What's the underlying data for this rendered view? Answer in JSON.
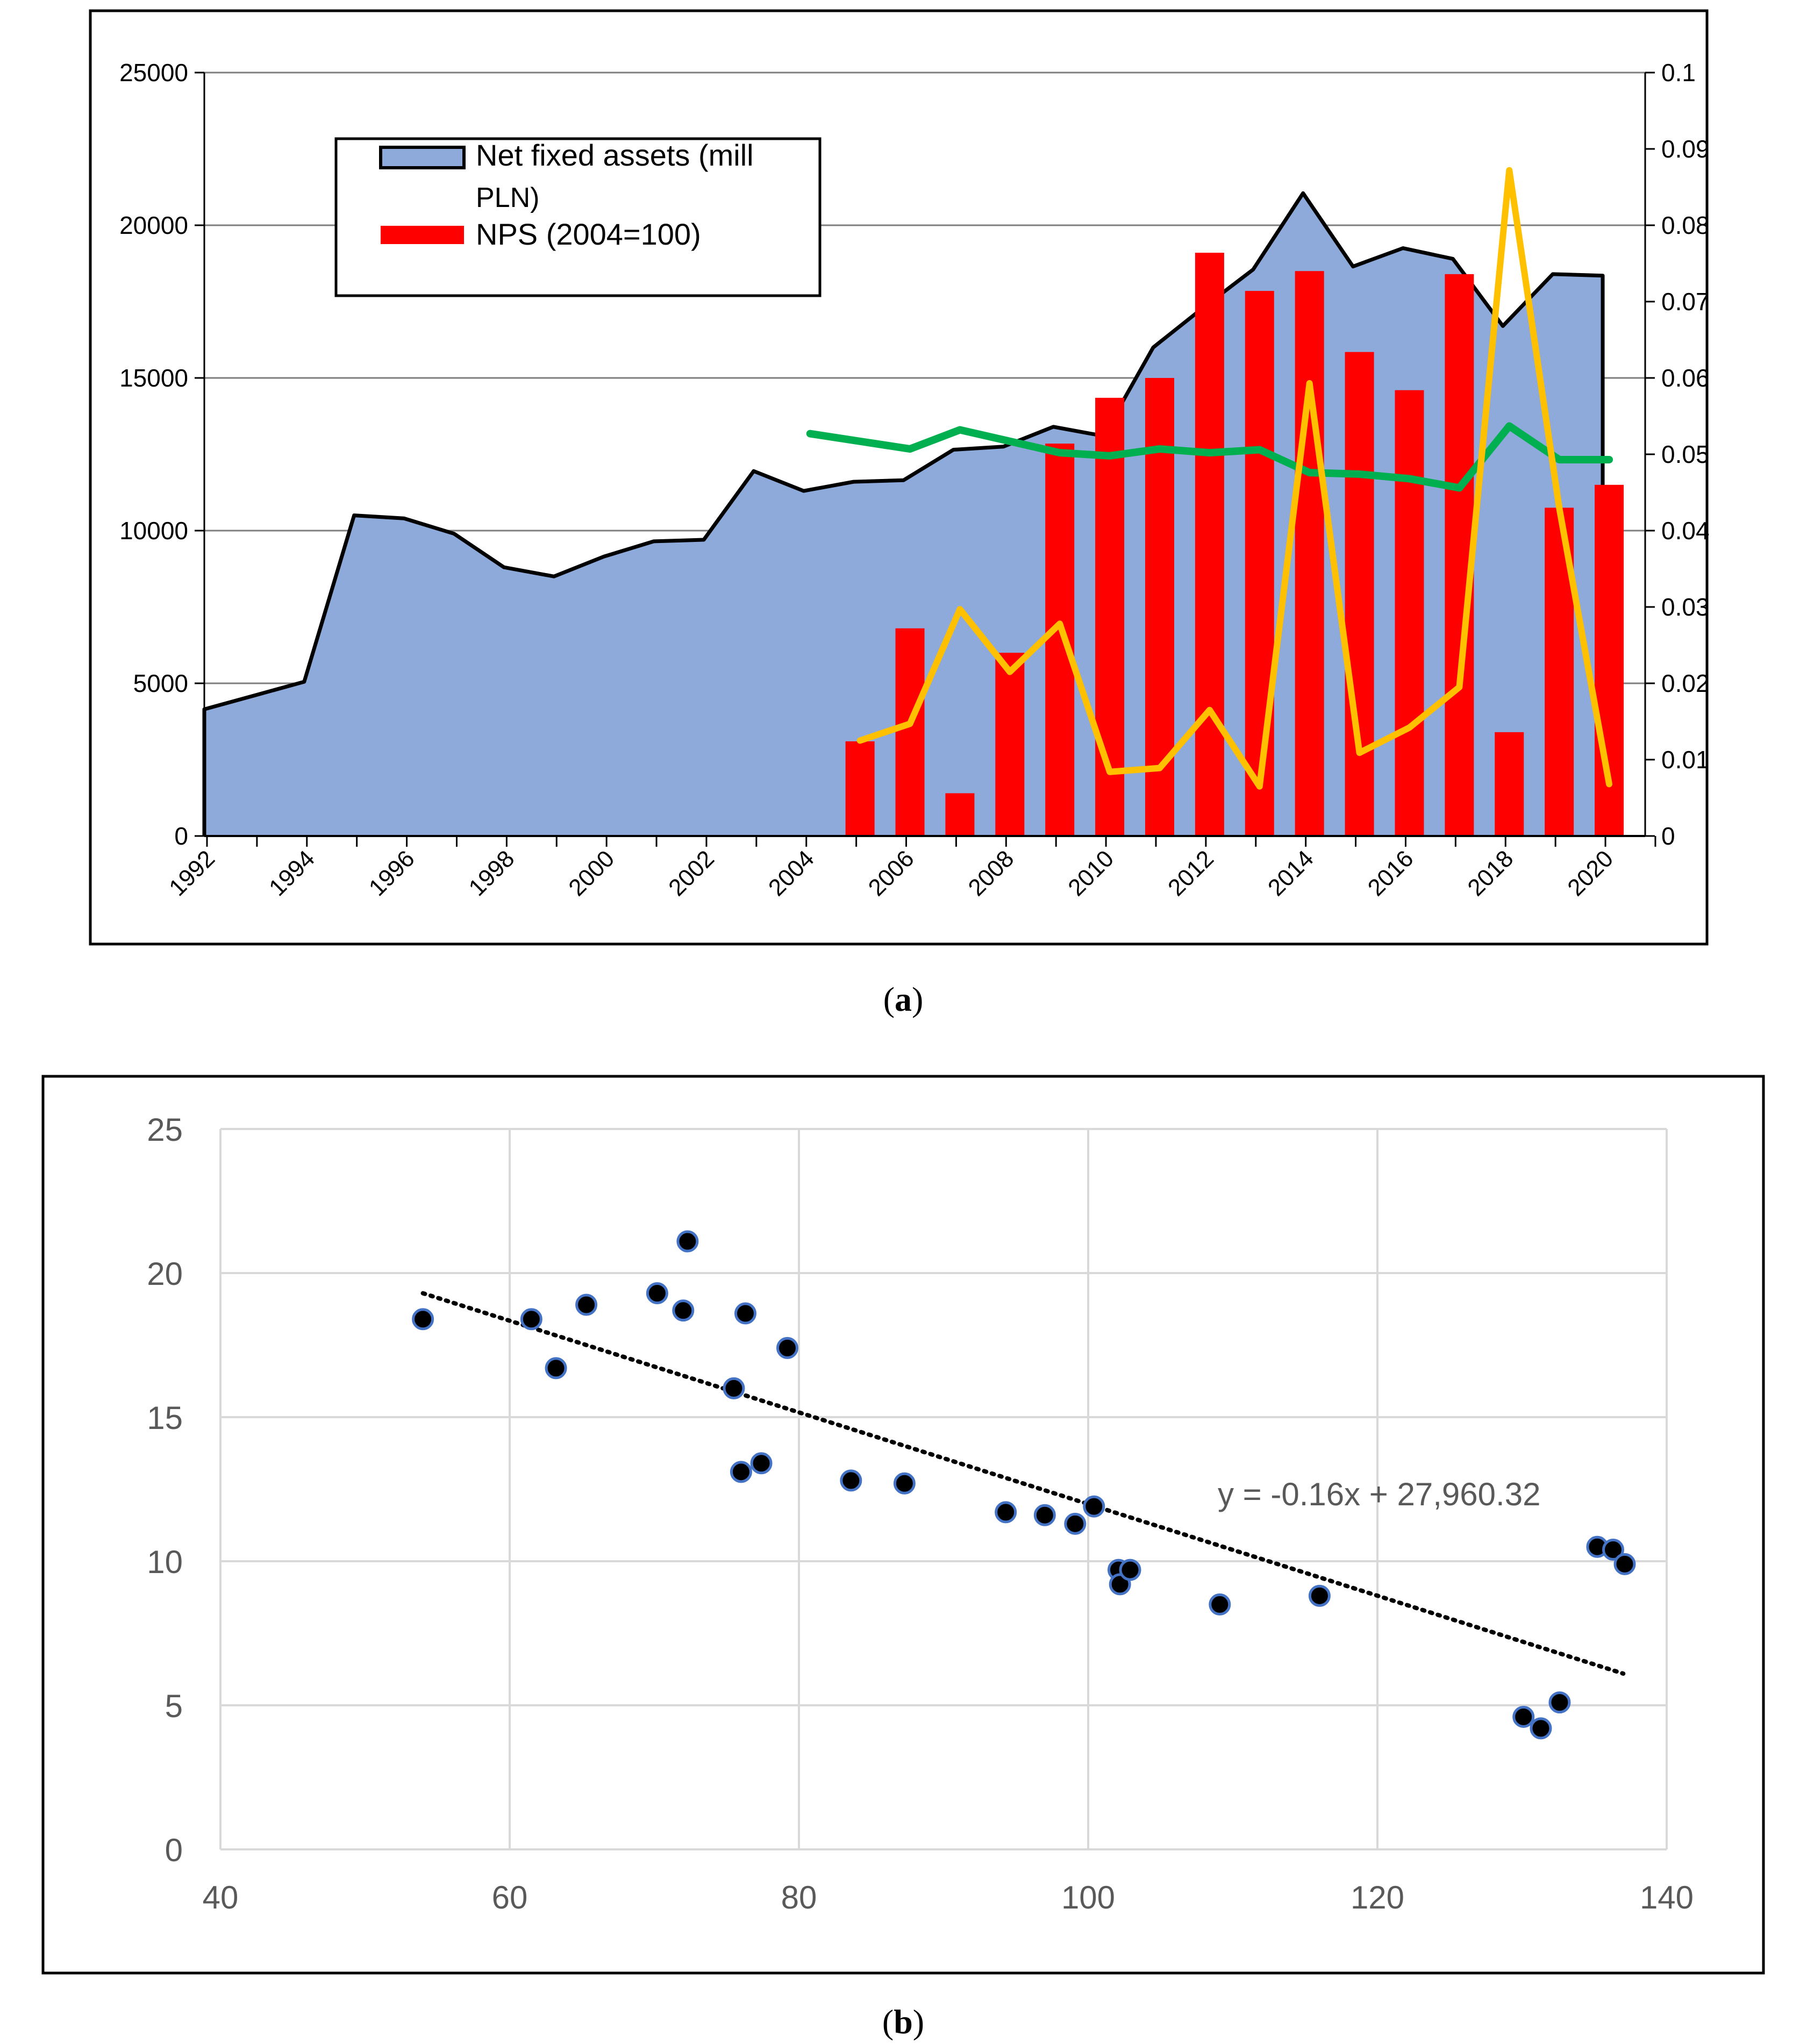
{
  "chart_data": [
    {
      "panel": "a",
      "type": "area-bar-line",
      "caption_letter": "a",
      "x_ticks": [
        "1992",
        "1994",
        "1996",
        "1998",
        "2000",
        "2002",
        "2004",
        "2006",
        "2008",
        "2010",
        "2012",
        "2014",
        "2016",
        "2018",
        "2020"
      ],
      "y_left": {
        "ylim": [
          0,
          25000
        ],
        "ticks": [
          "0",
          "5000",
          "10000",
          "15000",
          "20000",
          "25000"
        ]
      },
      "y_right": {
        "ylim": [
          0,
          0.1
        ],
        "ticks": [
          "0",
          "0.01",
          "0.02",
          "0.03",
          "0.04",
          "0.05",
          "0.06",
          "0.07",
          "0.08",
          "0.09",
          "0.1"
        ]
      },
      "legend": {
        "position": "upper-left",
        "area_label_line1": "Net fixed assets (mill",
        "area_label_line2": "PLN)",
        "bar_label": "NPS (2004=100)"
      },
      "colors": {
        "area": "#8eaadb",
        "bars": "#ff0000",
        "green": "#00b050",
        "yellow": "#ffc000"
      },
      "net_fixed_assets": {
        "x": [
          1992,
          1993,
          1994,
          1995,
          1996,
          1997,
          1998,
          1999,
          2000,
          2001,
          2002,
          2003,
          2004,
          2005,
          2006,
          2007,
          2008,
          2009,
          2010,
          2011,
          2012,
          2013,
          2014,
          2015,
          2016,
          2017,
          2018,
          2019,
          2020
        ],
        "values": [
          4150,
          4600,
          5050,
          10500,
          10400,
          9900,
          8800,
          8500,
          9150,
          9650,
          9700,
          11950,
          11300,
          11600,
          11650,
          12650,
          12750,
          13400,
          13100,
          16000,
          17300,
          18550,
          21050,
          18650,
          19250,
          18900,
          16700,
          18400,
          18350
        ]
      },
      "nps_bars": {
        "x": [
          2005,
          2006,
          2007,
          2008,
          2009,
          2010,
          2011,
          2012,
          2013,
          2014,
          2015,
          2016,
          2017,
          2018,
          2019,
          2020
        ],
        "values": [
          3100,
          6800,
          1400,
          6000,
          12850,
          14350,
          15000,
          19100,
          17850,
          18500,
          15850,
          14600,
          18400,
          3400,
          10750,
          11500
        ]
      },
      "green_series": {
        "x": [
          2004,
          2005,
          2006,
          2007,
          2008,
          2009,
          2010,
          2011,
          2012,
          2013,
          2014,
          2015,
          2016,
          2017,
          2018,
          2019,
          2020
        ],
        "values": [
          0.0527,
          0.0517,
          0.0507,
          0.0532,
          0.0517,
          0.0502,
          0.0498,
          0.0507,
          0.0502,
          0.0506,
          0.0476,
          0.0474,
          0.0468,
          0.0456,
          0.0537,
          0.0493,
          0.0493
        ]
      },
      "yellow_series": {
        "x": [
          2005,
          2006,
          2007,
          2008,
          2009,
          2010,
          2011,
          2012,
          2013,
          2014,
          2015,
          2016,
          2017,
          2018,
          2019,
          2020
        ],
        "values": [
          0.0125,
          0.0147,
          0.0297,
          0.0215,
          0.0278,
          0.0084,
          0.0089,
          0.0165,
          0.0065,
          0.0593,
          0.0109,
          0.0142,
          0.0195,
          0.0872,
          0.043,
          0.0068
        ]
      }
    },
    {
      "panel": "b",
      "type": "scatter",
      "caption_letter": "b",
      "xlim": [
        40,
        140
      ],
      "ylim": [
        0,
        25
      ],
      "x_ticks": [
        "40",
        "60",
        "80",
        "100",
        "120",
        "140"
      ],
      "y_ticks": [
        "0",
        "5",
        "10",
        "15",
        "20",
        "25"
      ],
      "trendline_label": "y = -0.16x + 27,960.32",
      "trendline": {
        "x": [
          54,
          137
        ],
        "y": [
          19.3,
          6.1
        ]
      },
      "points": [
        {
          "x": 54,
          "y": 18.4
        },
        {
          "x": 61.5,
          "y": 18.4
        },
        {
          "x": 63.2,
          "y": 16.7
        },
        {
          "x": 65.3,
          "y": 18.9
        },
        {
          "x": 70.2,
          "y": 19.3
        },
        {
          "x": 72,
          "y": 18.7
        },
        {
          "x": 72.3,
          "y": 21.1
        },
        {
          "x": 75.5,
          "y": 16
        },
        {
          "x": 76,
          "y": 13.1
        },
        {
          "x": 76.3,
          "y": 18.6
        },
        {
          "x": 77.4,
          "y": 13.4
        },
        {
          "x": 79.2,
          "y": 17.4
        },
        {
          "x": 83.6,
          "y": 12.8
        },
        {
          "x": 87.3,
          "y": 12.7
        },
        {
          "x": 94.3,
          "y": 11.7
        },
        {
          "x": 97,
          "y": 11.6
        },
        {
          "x": 99.1,
          "y": 11.3
        },
        {
          "x": 100.4,
          "y": 11.9
        },
        {
          "x": 102.1,
          "y": 9.7
        },
        {
          "x": 102.2,
          "y": 9.2
        },
        {
          "x": 102.9,
          "y": 9.7
        },
        {
          "x": 109.1,
          "y": 8.5
        },
        {
          "x": 116,
          "y": 8.8
        },
        {
          "x": 130.1,
          "y": 4.6
        },
        {
          "x": 131.3,
          "y": 4.2
        },
        {
          "x": 132.6,
          "y": 5.1
        },
        {
          "x": 135.2,
          "y": 10.5
        },
        {
          "x": 136.3,
          "y": 10.4
        },
        {
          "x": 137.1,
          "y": 9.9
        }
      ]
    }
  ]
}
